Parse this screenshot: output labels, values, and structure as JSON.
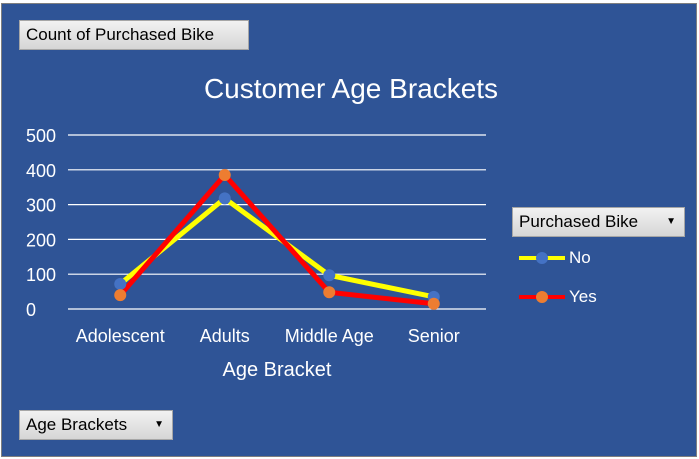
{
  "filters": {
    "value_field": "Count of Purchased Bike",
    "legend_field": "Purchased Bike",
    "axis_field": "Age Brackets"
  },
  "colors": {
    "background": "#2f5496",
    "gridline": "#ffffff",
    "no_line": "#ffff00",
    "yes_line": "#ff0000",
    "no_marker": "#4472c4",
    "yes_marker": "#ed7d31"
  },
  "chart_data": {
    "type": "line",
    "title": "Customer Age Brackets",
    "xlabel": "Age Bracket",
    "ylabel": "",
    "categories": [
      "Adolescent",
      "Adults",
      "Middle Age",
      "Senior"
    ],
    "ylim": [
      0,
      500
    ],
    "yticks": [
      0,
      100,
      200,
      300,
      400,
      500
    ],
    "grid": true,
    "legend_position": "right",
    "series": [
      {
        "name": "No",
        "values": [
          72,
          318,
          97,
          35
        ]
      },
      {
        "name": "Yes",
        "values": [
          40,
          385,
          48,
          15
        ]
      }
    ]
  }
}
